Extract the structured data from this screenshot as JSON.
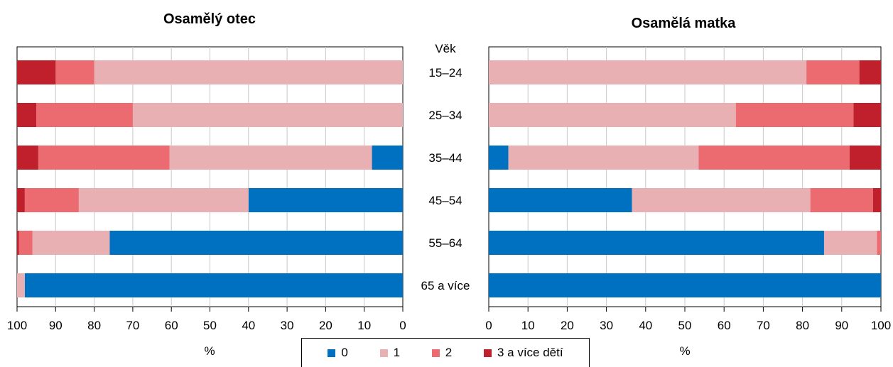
{
  "chart_data": [
    {
      "type": "bar",
      "orientation": "horizontal",
      "stacked": true,
      "x_reversed": true,
      "title": "Osamělý otec",
      "xlabel": "%",
      "xlim": [
        0,
        100
      ],
      "xticks": [
        "100",
        "90",
        "80",
        "70",
        "60",
        "50",
        "40",
        "30",
        "20",
        "10",
        "0"
      ],
      "categories": [
        "15–24",
        "25–34",
        "35–44",
        "45–54",
        "55–64",
        "65 a více"
      ],
      "series": [
        {
          "name": "0",
          "values": [
            0,
            0,
            8,
            40,
            76,
            98
          ]
        },
        {
          "name": "1",
          "values": [
            80,
            70,
            52.5,
            44,
            20,
            2
          ]
        },
        {
          "name": "2",
          "values": [
            10,
            25,
            34,
            14,
            3.5,
            0
          ]
        },
        {
          "name": "3 a více dětí",
          "values": [
            10,
            5,
            5.5,
            2,
            0.5,
            0
          ]
        }
      ]
    },
    {
      "type": "bar",
      "orientation": "horizontal",
      "stacked": true,
      "title": "Osamělá matka",
      "xlabel": "%",
      "xlim": [
        0,
        100
      ],
      "xticks": [
        "0",
        "10",
        "20",
        "30",
        "40",
        "50",
        "60",
        "70",
        "80",
        "90",
        "100"
      ],
      "categories": [
        "15–24",
        "25–34",
        "35–44",
        "45–54",
        "55–64",
        "65 a více"
      ],
      "series": [
        {
          "name": "0",
          "values": [
            0,
            0,
            5,
            36.5,
            85.5,
            100
          ]
        },
        {
          "name": "1",
          "values": [
            81,
            63,
            48.5,
            45.5,
            13.5,
            0
          ]
        },
        {
          "name": "2",
          "values": [
            13.5,
            30,
            38.5,
            16,
            1,
            0
          ]
        },
        {
          "name": "3 a více dětí",
          "values": [
            5.5,
            7,
            8,
            2,
            0,
            0
          ]
        }
      ]
    }
  ],
  "category_header": "Věk",
  "legend": {
    "items": [
      {
        "label": "0",
        "color": "#0070c0"
      },
      {
        "label": "1",
        "color": "#e8b0b3"
      },
      {
        "label": "2",
        "color": "#ec6b71"
      },
      {
        "label": "3 a více dětí",
        "color": "#c0202b"
      }
    ]
  },
  "colors": {
    "grid": "#c8c8c8",
    "axis": "#000000"
  }
}
